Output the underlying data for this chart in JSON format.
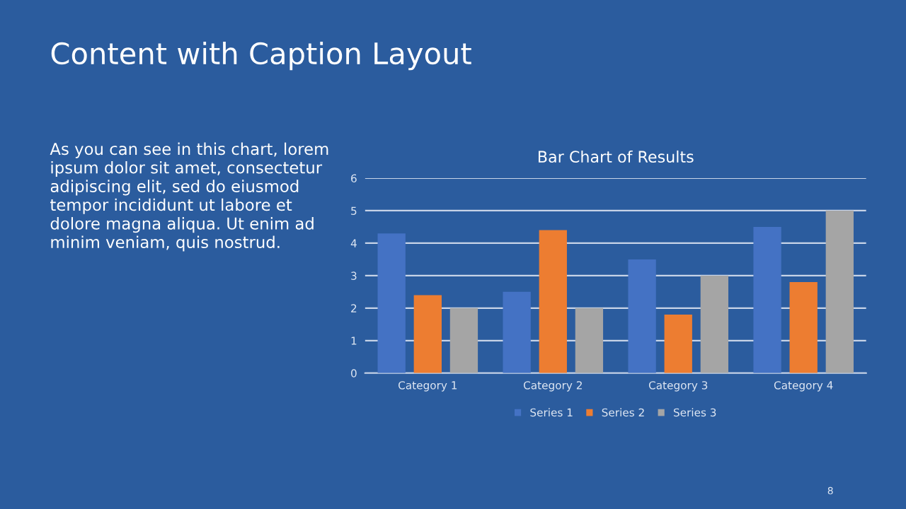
{
  "chart_data": {
    "type": "bar",
    "title": "Bar Chart of Results",
    "categories": [
      "Category 1",
      "Category 2",
      "Category 3",
      "Category 4"
    ],
    "series": [
      {
        "name": "Series 1",
        "color": "#4472c4",
        "values": [
          4.3,
          2.5,
          3.5,
          4.5
        ]
      },
      {
        "name": "Series 2",
        "color": "#ed7d31",
        "values": [
          2.4,
          4.4,
          1.8,
          2.8
        ]
      },
      {
        "name": "Series 3",
        "color": "#a5a5a5",
        "values": [
          2,
          2,
          3,
          5
        ]
      }
    ],
    "ylim": [
      0,
      6
    ],
    "yticks": [
      0,
      1,
      2,
      3,
      4,
      5,
      6
    ],
    "grid": "y",
    "legend": "bottom",
    "annotations": [
      "Content with Caption Layout",
      "As you can see in this chart, lorem\nipsum dolor sit amet, consectetur\nadipiscing elit, sed do eiusmod\ntempor incididunt ut labore et\ndolore magna aliqua. Ut enim ad\nminim veniam, quis nostrud.",
      "8"
    ]
  }
}
